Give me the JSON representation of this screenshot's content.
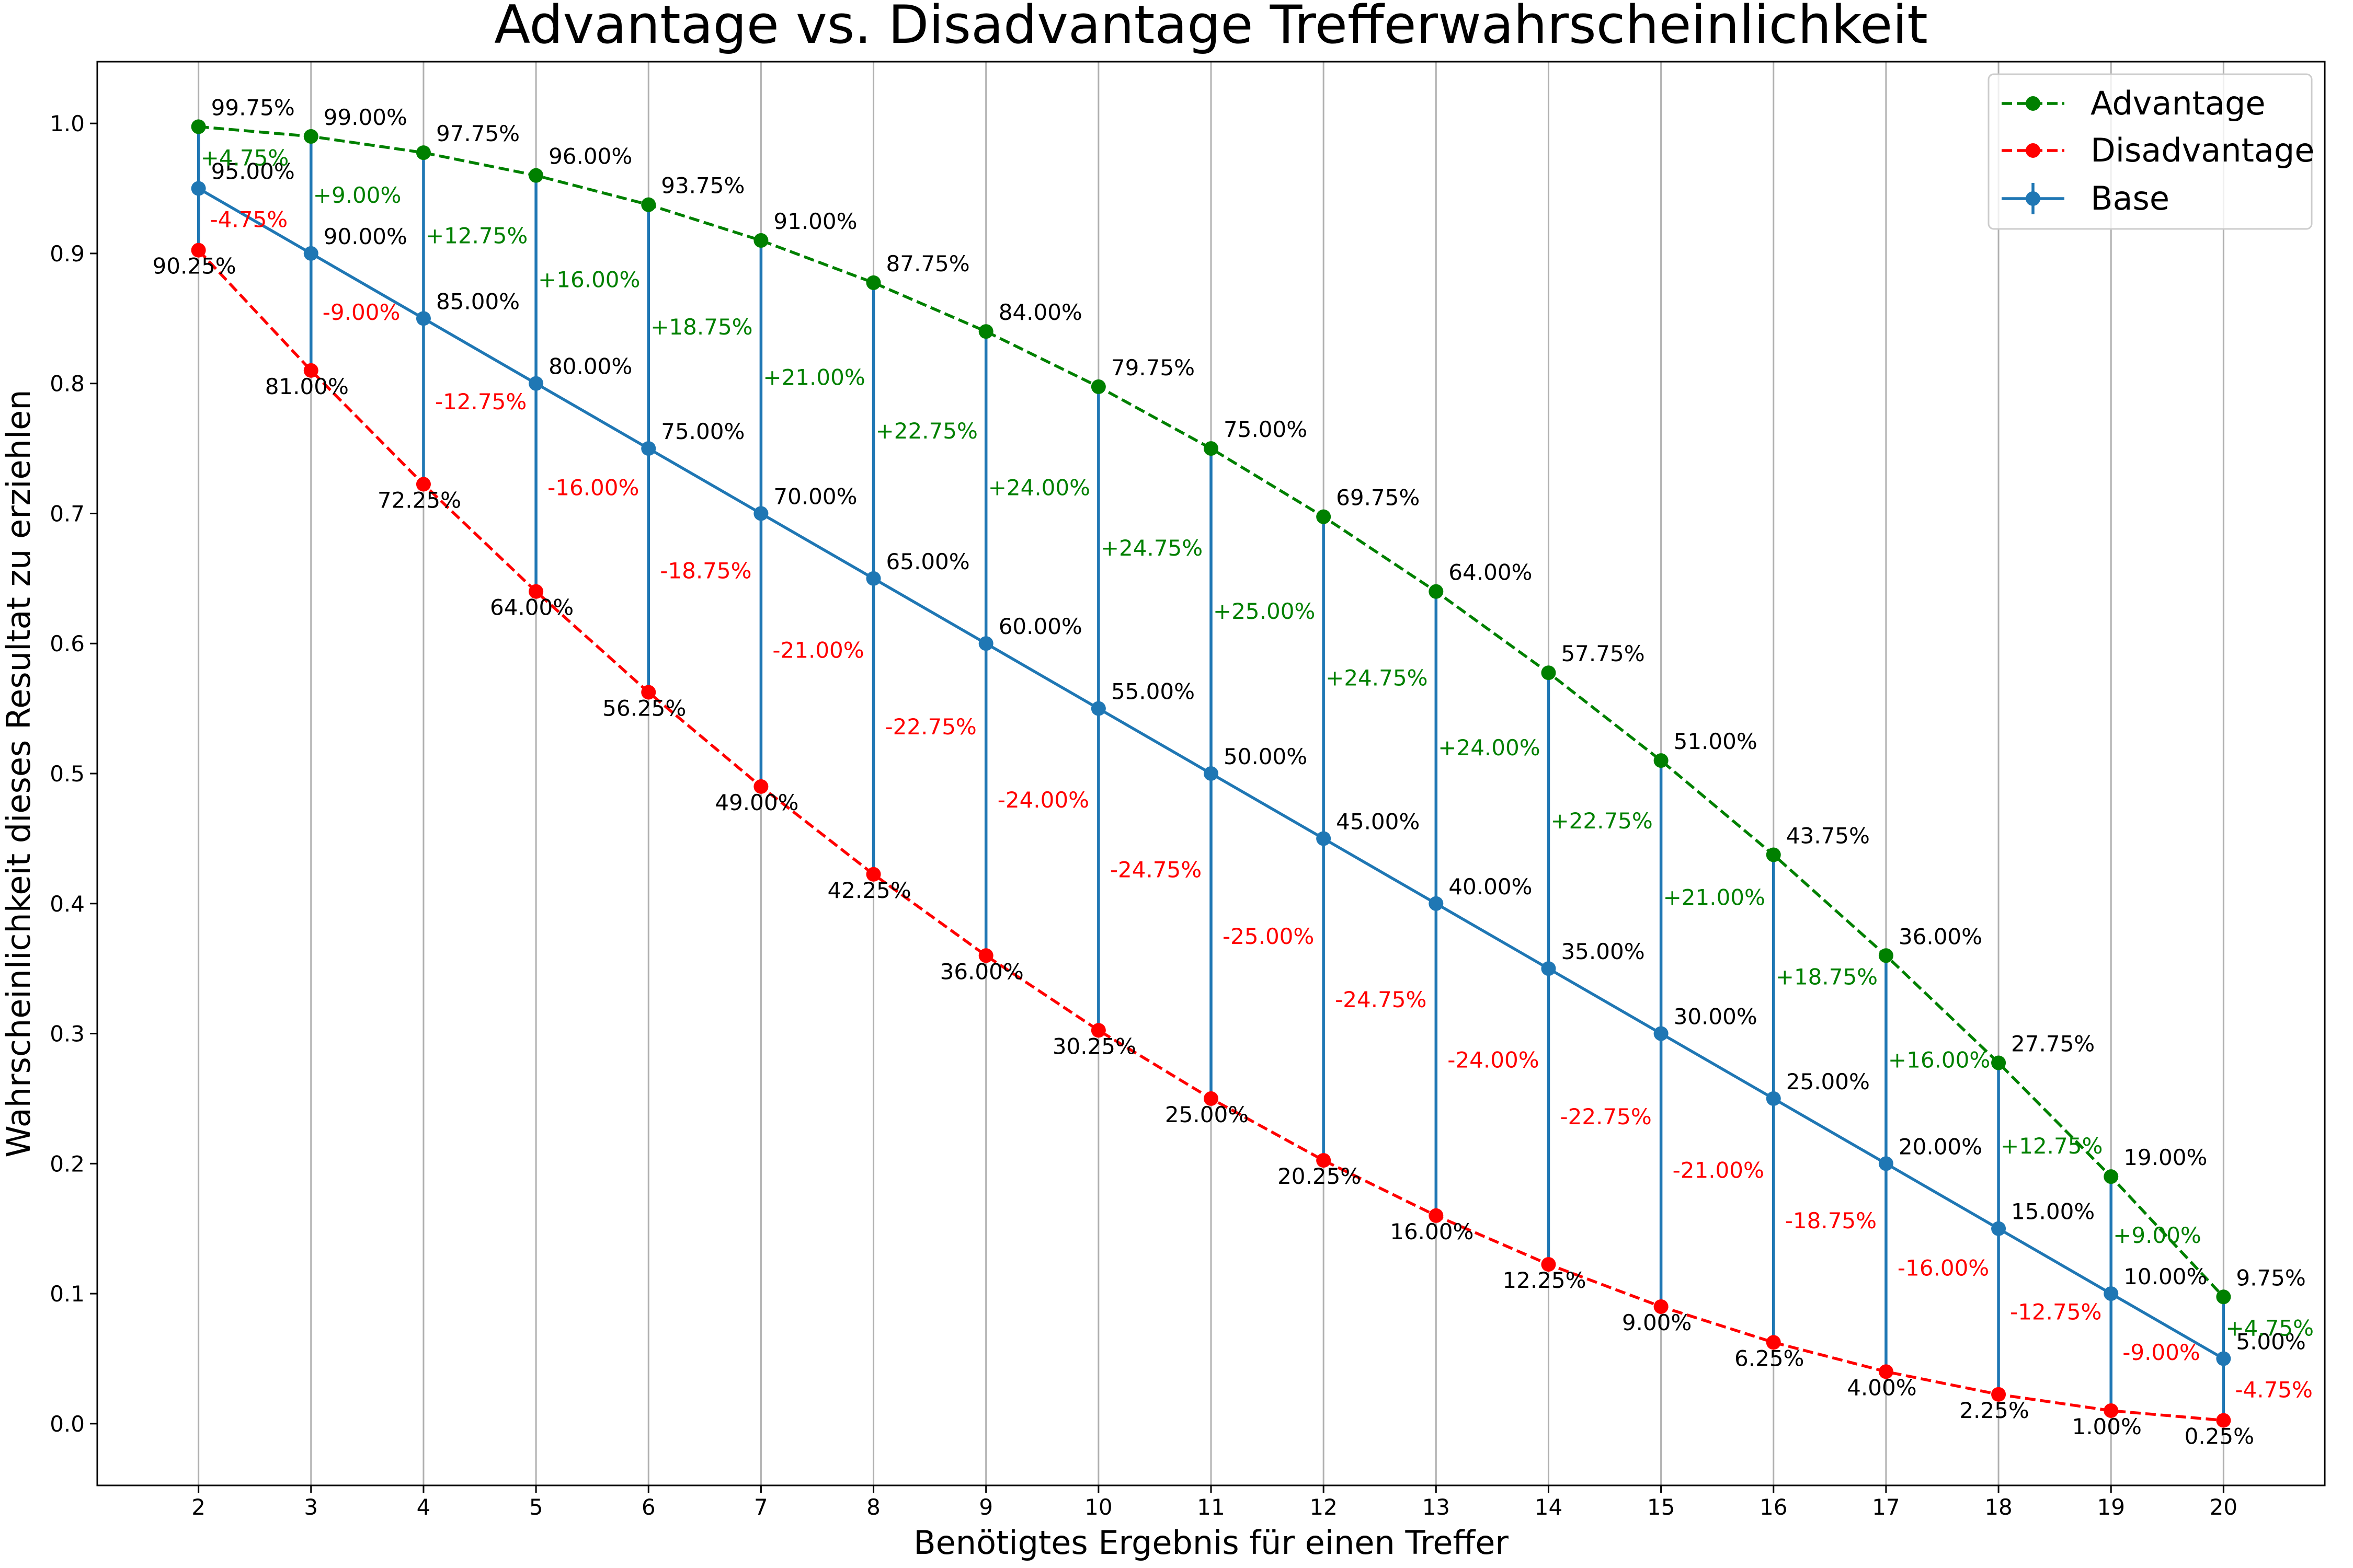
{
  "chart_data": {
    "type": "line",
    "title": "Advantage vs. Disadvantage Trefferwahrscheinlichkeit",
    "xlabel": "Benötigtes Ergebnis für einen Treffer",
    "ylabel": "Wahrscheinlichkeit dieses Resultat zu erziehlen",
    "x": [
      2,
      3,
      4,
      5,
      6,
      7,
      8,
      9,
      10,
      11,
      12,
      13,
      14,
      15,
      16,
      17,
      18,
      19,
      20
    ],
    "xlim": [
      1.1,
      20.9
    ],
    "ylim": [
      -0.0475,
      1.0475
    ],
    "yticks": [
      0.0,
      0.1,
      0.2,
      0.3,
      0.4,
      0.5,
      0.6,
      0.7,
      0.8,
      0.9,
      1.0
    ],
    "ytick_labels": [
      "0.0",
      "0.1",
      "0.2",
      "0.3",
      "0.4",
      "0.5",
      "0.6",
      "0.7",
      "0.8",
      "0.9",
      "1.0"
    ],
    "grid": "x",
    "legend_position": "top-right",
    "series": [
      {
        "name": "Advantage",
        "color": "#008000",
        "style": "dashed",
        "values": [
          0.9975,
          0.99,
          0.9775,
          0.96,
          0.9375,
          0.91,
          0.8775,
          0.84,
          0.7975,
          0.75,
          0.6975,
          0.64,
          0.5775,
          0.51,
          0.4375,
          0.36,
          0.2775,
          0.19,
          0.0975
        ],
        "labels": [
          "99.75%",
          "99.00%",
          "97.75%",
          "96.00%",
          "93.75%",
          "91.00%",
          "87.75%",
          "84.00%",
          "79.75%",
          "75.00%",
          "69.75%",
          "64.00%",
          "57.75%",
          "51.00%",
          "43.75%",
          "36.00%",
          "27.75%",
          "19.00%",
          "9.75%"
        ]
      },
      {
        "name": "Disadvantage",
        "color": "#ff0000",
        "style": "dashed",
        "values": [
          0.9025,
          0.81,
          0.7225,
          0.64,
          0.5625,
          0.49,
          0.4225,
          0.36,
          0.3025,
          0.25,
          0.2025,
          0.16,
          0.1225,
          0.09,
          0.0625,
          0.04,
          0.0225,
          0.01,
          0.0025
        ],
        "labels": [
          "90.25%",
          "81.00%",
          "72.25%",
          "64.00%",
          "56.25%",
          "49.00%",
          "42.25%",
          "36.00%",
          "30.25%",
          "25.00%",
          "20.25%",
          "16.00%",
          "12.25%",
          "9.00%",
          "6.25%",
          "4.00%",
          "2.25%",
          "1.00%",
          "0.25%"
        ]
      },
      {
        "name": "Base",
        "color": "#1f77b4",
        "style": "solid",
        "values": [
          0.95,
          0.9,
          0.85,
          0.8,
          0.75,
          0.7,
          0.65,
          0.6,
          0.55,
          0.5,
          0.45,
          0.4,
          0.35,
          0.3,
          0.25,
          0.2,
          0.15,
          0.1,
          0.05
        ],
        "labels": [
          "95.00%",
          "90.00%",
          "85.00%",
          "80.00%",
          "75.00%",
          "70.00%",
          "65.00%",
          "60.00%",
          "55.00%",
          "50.00%",
          "45.00%",
          "40.00%",
          "35.00%",
          "30.00%",
          "25.00%",
          "20.00%",
          "15.00%",
          "10.00%",
          "5.00%"
        ],
        "error_bars": {
          "upper": [
            0.0475,
            0.09,
            0.1275,
            0.16,
            0.1875,
            0.21,
            0.2275,
            0.24,
            0.2475,
            0.25,
            0.2475,
            0.24,
            0.2275,
            0.21,
            0.1875,
            0.16,
            0.1275,
            0.09,
            0.0475
          ],
          "lower": [
            0.0475,
            0.09,
            0.1275,
            0.16,
            0.1875,
            0.21,
            0.2275,
            0.24,
            0.2475,
            0.25,
            0.2475,
            0.24,
            0.2275,
            0.21,
            0.1875,
            0.16,
            0.1275,
            0.09,
            0.0475
          ]
        }
      }
    ],
    "advantage_diff_labels": [
      "+4.75%",
      "+9.00%",
      "+12.75%",
      "+16.00%",
      "+18.75%",
      "+21.00%",
      "+22.75%",
      "+24.00%",
      "+24.75%",
      "+25.00%",
      "+24.75%",
      "+24.00%",
      "+22.75%",
      "+21.00%",
      "+18.75%",
      "+16.00%",
      "+12.75%",
      "+9.00%",
      "+4.75%"
    ],
    "disadvantage_diff_labels": [
      "-4.75%",
      "-9.00%",
      "-12.75%",
      "-16.00%",
      "-18.75%",
      "-21.00%",
      "-22.75%",
      "-24.00%",
      "-24.75%",
      "-25.00%",
      "-24.75%",
      "-24.00%",
      "-22.75%",
      "-21.00%",
      "-18.75%",
      "-16.00%",
      "-12.75%",
      "-9.00%",
      "-4.75%"
    ]
  }
}
